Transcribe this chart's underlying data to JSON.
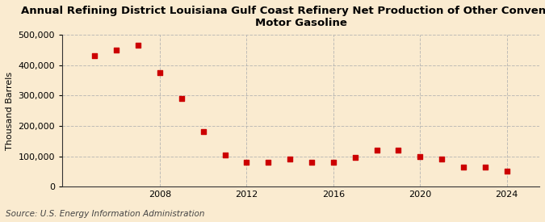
{
  "title": "Annual Refining District Louisiana Gulf Coast Refinery Net Production of Other Conventional\nMotor Gasoline",
  "ylabel": "Thousand Barrels",
  "source": "Source: U.S. Energy Information Administration",
  "background_color": "#faebd0",
  "plot_background_color": "#faebd0",
  "marker_color": "#cc0000",
  "marker": "s",
  "markersize": 4,
  "years": [
    2005,
    2006,
    2007,
    2008,
    2009,
    2010,
    2011,
    2012,
    2013,
    2014,
    2015,
    2016,
    2017,
    2018,
    2019,
    2020,
    2021,
    2022,
    2023,
    2024
  ],
  "values": [
    430000,
    450000,
    465000,
    375000,
    290000,
    180000,
    105000,
    80000,
    80000,
    90000,
    80000,
    80000,
    95000,
    120000,
    120000,
    100000,
    90000,
    65000,
    65000,
    52000
  ],
  "ylim": [
    0,
    500000
  ],
  "yticks": [
    0,
    100000,
    200000,
    300000,
    400000,
    500000
  ],
  "xlim": [
    2003.5,
    2025.5
  ],
  "xticks": [
    2008,
    2012,
    2016,
    2020,
    2024
  ],
  "grid_color": "#b0b0b0",
  "grid_style": "--",
  "grid_alpha": 0.8,
  "title_fontsize": 9.5,
  "axis_fontsize": 8,
  "ylabel_fontsize": 8,
  "source_fontsize": 7.5
}
